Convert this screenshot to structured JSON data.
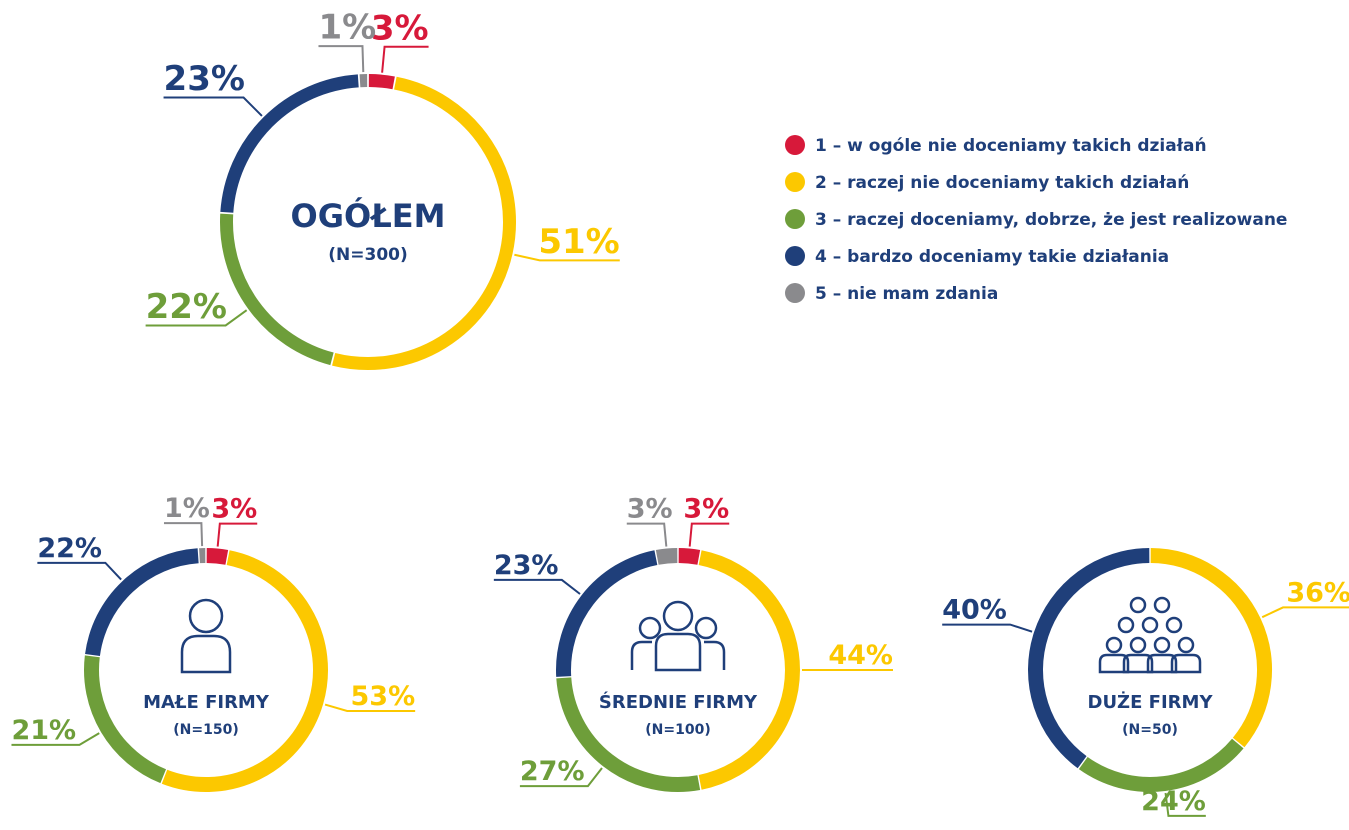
{
  "legend": {
    "labels": [
      "1 – w ogóle nie doceniamy takich działań",
      "2 – raczej nie doceniamy takich działań",
      "3 – raczej doceniamy, dobrze, że jest realizowane",
      "4 – bardzo doceniamy takie działania",
      "5 – nie mam zdania"
    ],
    "colors": [
      "#d7193a",
      "#fcc800",
      "#6e9e3a",
      "#1f3f7a",
      "#8a8a8d"
    ]
  },
  "chart_data": [
    {
      "type": "pie",
      "title": "OGÓŁEM",
      "subtitle": "(N=300)",
      "values": [
        3,
        51,
        22,
        23,
        1
      ],
      "value_labels": [
        "3%",
        "51%",
        "22%",
        "23%",
        "1%"
      ]
    },
    {
      "type": "pie",
      "title": "MAŁE FIRMY",
      "subtitle": "(N=150)",
      "values": [
        3,
        53,
        21,
        22,
        1
      ],
      "value_labels": [
        "3%",
        "53%",
        "21%",
        "22%",
        "1%"
      ]
    },
    {
      "type": "pie",
      "title": "ŚREDNIE FIRMY",
      "subtitle": "(N=100)",
      "values": [
        3,
        44,
        27,
        23,
        3
      ],
      "value_labels": [
        "3%",
        "44%",
        "27%",
        "23%",
        "3%"
      ]
    },
    {
      "type": "pie",
      "title": "DUŻE FIRMY",
      "subtitle": "(N=50)",
      "values": [
        0,
        36,
        24,
        40,
        0
      ],
      "value_labels": [
        null,
        "36%",
        "24%",
        "40%",
        null
      ]
    }
  ]
}
